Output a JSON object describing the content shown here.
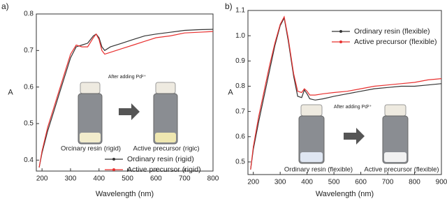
{
  "chart_data": [
    {
      "type": "line",
      "panel_label": "a)",
      "xlabel": "Wavelength (nm)",
      "ylabel": "A",
      "xlim": [
        180,
        800
      ],
      "xticks": [
        200,
        300,
        400,
        500,
        600,
        700,
        800
      ],
      "ylim": [
        0.37,
        0.8
      ],
      "yticks": [
        0.4,
        0.5,
        0.6,
        0.7,
        0.8
      ],
      "legend": "lower right",
      "annotations": [
        "After adding Pd²⁺",
        "Orcinary resin (rigid)",
        "Active precursor (rigic)"
      ],
      "x": [
        190,
        200,
        220,
        240,
        260,
        280,
        300,
        320,
        340,
        360,
        380,
        390,
        400,
        410,
        420,
        440,
        480,
        520,
        560,
        600,
        650,
        700,
        750,
        800
      ],
      "series": [
        {
          "name": "Ordinary resin (rigid)",
          "color": "#333333",
          "values": [
            0.38,
            0.42,
            0.48,
            0.53,
            0.58,
            0.63,
            0.68,
            0.71,
            0.715,
            0.72,
            0.74,
            0.745,
            0.735,
            0.71,
            0.7,
            0.71,
            0.72,
            0.73,
            0.74,
            0.745,
            0.75,
            0.755,
            0.757,
            0.758
          ]
        },
        {
          "name": "Active precursor (rigid)",
          "color": "#e8302f",
          "values": [
            0.38,
            0.425,
            0.49,
            0.54,
            0.59,
            0.64,
            0.69,
            0.715,
            0.71,
            0.71,
            0.735,
            0.745,
            0.73,
            0.7,
            0.69,
            0.695,
            0.705,
            0.715,
            0.725,
            0.735,
            0.74,
            0.748,
            0.75,
            0.752
          ]
        }
      ]
    },
    {
      "type": "line",
      "panel_label": "b)",
      "xlabel": "Wavelength (nm)",
      "ylabel": "A",
      "xlim": [
        180,
        900
      ],
      "xticks": [
        200,
        300,
        400,
        500,
        600,
        700,
        800,
        900
      ],
      "ylim": [
        0.45,
        1.1
      ],
      "yticks": [
        0.5,
        0.6,
        0.7,
        0.8,
        0.9,
        {
          "value": 1,
          "label": "1.0"
        },
        1.1
      ],
      "legend": "upper right",
      "annotations": [
        "After adding Pd²⁺",
        "Ordinary resin (flexible)",
        "Active precursor (flexible)"
      ],
      "x": [
        190,
        200,
        220,
        240,
        260,
        280,
        300,
        315,
        330,
        350,
        365,
        380,
        390,
        400,
        410,
        430,
        460,
        500,
        550,
        600,
        650,
        700,
        750,
        800,
        850,
        900
      ],
      "series": [
        {
          "name": "Ordinary resin (flexible)",
          "color": "#333333",
          "values": [
            0.47,
            0.55,
            0.66,
            0.76,
            0.86,
            0.96,
            1.04,
            1.07,
            0.98,
            0.84,
            0.76,
            0.755,
            0.785,
            0.77,
            0.75,
            0.745,
            0.75,
            0.76,
            0.77,
            0.78,
            0.79,
            0.795,
            0.8,
            0.8,
            0.805,
            0.81
          ]
        },
        {
          "name": "Active precursor (flexible)",
          "color": "#e8302f",
          "values": [
            0.47,
            0.56,
            0.68,
            0.78,
            0.88,
            0.97,
            1.045,
            1.075,
            0.99,
            0.85,
            0.78,
            0.775,
            0.79,
            0.78,
            0.765,
            0.765,
            0.77,
            0.775,
            0.78,
            0.79,
            0.8,
            0.805,
            0.81,
            0.815,
            0.825,
            0.83
          ]
        }
      ]
    }
  ]
}
